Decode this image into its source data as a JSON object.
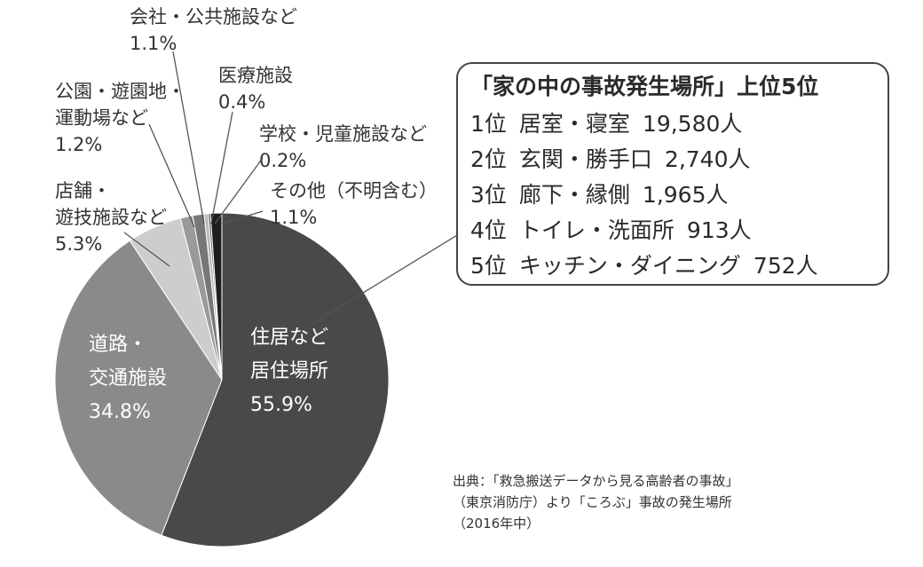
{
  "chart_data": {
    "type": "pie",
    "slices": [
      {
        "label_lines": [
          "住居など",
          "居住場所"
        ],
        "value_text": "55.9%",
        "value": 55.9,
        "color": "#4a4848"
      },
      {
        "label_lines": [
          "道路・",
          "交通施設"
        ],
        "value_text": "34.8%",
        "value": 34.8,
        "color": "#8a8a8a"
      },
      {
        "label_lines": [
          "店舗・",
          "遊技施設など"
        ],
        "value_text": "5.3%",
        "value": 5.3,
        "color": "#cdcdcd"
      },
      {
        "label_lines": [
          "公園・遊園地・",
          "運動場など"
        ],
        "value_text": "1.2%",
        "value": 1.2,
        "color": "#9a9a9a"
      },
      {
        "label_lines": [
          "会社・公共施設など"
        ],
        "value_text": "1.1%",
        "value": 1.1,
        "color": "#777777"
      },
      {
        "label_lines": [
          "医療施設"
        ],
        "value_text": "0.4%",
        "value": 0.4,
        "color": "#bbbbbb"
      },
      {
        "label_lines": [
          "学校・児童施設など"
        ],
        "value_text": "0.2%",
        "value": 0.2,
        "color": "#555555"
      },
      {
        "label_lines": [
          "その他（不明含む）"
        ],
        "value_text": "1.1%",
        "value": 1.1,
        "color": "#1e1e1e"
      }
    ]
  },
  "ranking": {
    "title": "「家の中の事故発生場所」上位5位",
    "rows": [
      {
        "rank": "1位",
        "place": "居室・寝室",
        "count": "19,580人"
      },
      {
        "rank": "2位",
        "place": "玄関・勝手口",
        "count": "2,740人"
      },
      {
        "rank": "3位",
        "place": "廊下・縁側",
        "count": "1,965人"
      },
      {
        "rank": "4位",
        "place": "トイレ・洗面所",
        "count": "913人"
      },
      {
        "rank": "5位",
        "place": "キッチン・ダイニング",
        "count": "752人"
      }
    ]
  },
  "source": {
    "lines": [
      "出典：「救急搬送データから見る高齢者の事故」",
      "（東京消防庁）より「ころぶ」事故の発生場所",
      "（2016年中）"
    ]
  }
}
